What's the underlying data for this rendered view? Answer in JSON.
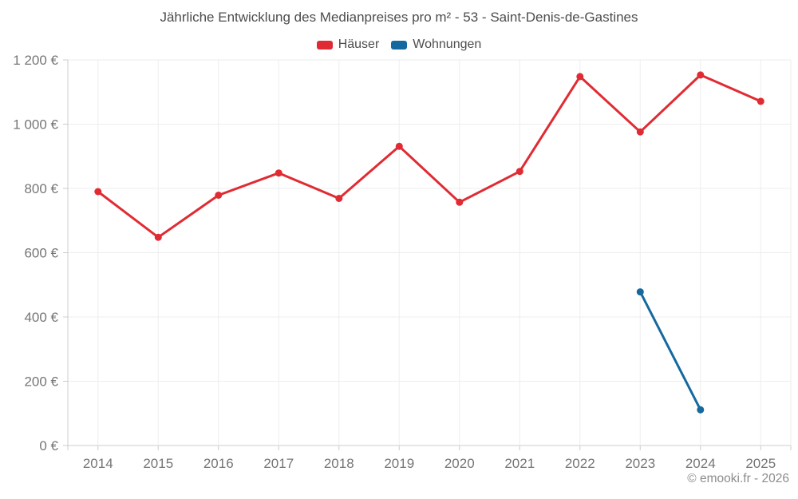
{
  "title": "Jährliche Entwicklung des Medianpreises pro m² - 53 - Saint-Denis-de-Gastines",
  "legend": {
    "items": [
      {
        "label": "Häuser",
        "color": "#e02b33"
      },
      {
        "label": "Wohnungen",
        "color": "#15699e"
      }
    ]
  },
  "footer": {
    "copyright": "© emooki.fr - 2026"
  },
  "colors": {
    "background": "#ffffff",
    "grid": "#ededed",
    "axis": "#cccccc",
    "tick_label": "#757575",
    "title_text": "#4d4d4d",
    "copyright_text": "#8c8c8c",
    "hauser_red": "#e02b33",
    "wohnungen_blue": "#15699e"
  },
  "chart_data": {
    "type": "line",
    "title": "Jährliche Entwicklung des Medianpreises pro m² - 53 - Saint-Denis-de-Gastines",
    "categories": [
      "2014",
      "2015",
      "2016",
      "2017",
      "2018",
      "2019",
      "2020",
      "2021",
      "2022",
      "2023",
      "2024",
      "2025"
    ],
    "series": [
      {
        "name": "Häuser",
        "color": "#e02b33",
        "values": [
          790,
          648,
          779,
          848,
          769,
          931,
          757,
          853,
          1148,
          976,
          1153,
          1071
        ]
      },
      {
        "name": "Wohnungen",
        "color": "#15699e",
        "values": [
          null,
          null,
          null,
          null,
          null,
          null,
          null,
          null,
          null,
          478,
          111,
          null
        ]
      }
    ],
    "xlabel": "",
    "ylabel": "",
    "ylim": [
      0,
      1200
    ],
    "ytick_step": 200,
    "ytick_labels": [
      "0 €",
      "200 €",
      "400 €",
      "600 €",
      "800 €",
      "1 000 €",
      "1 200 €"
    ],
    "grid": true,
    "legend_position": "top"
  }
}
